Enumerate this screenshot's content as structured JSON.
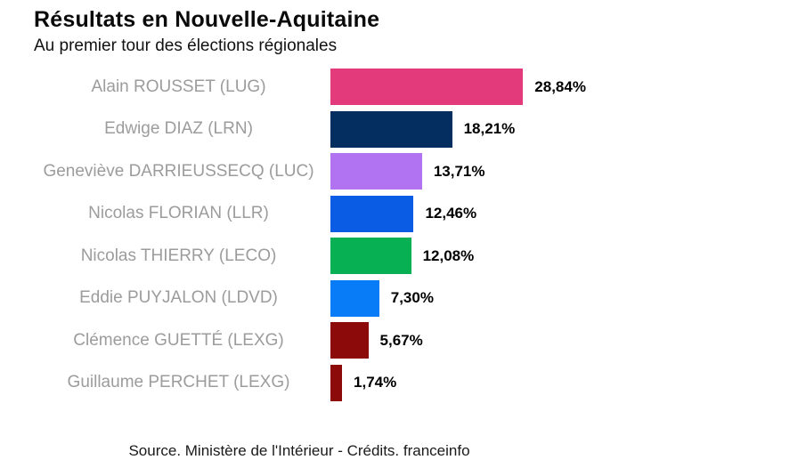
{
  "header": {
    "title": "Résultats en Nouvelle-Aquitaine",
    "subtitle": "Au premier tour des élections régionales"
  },
  "footer": {
    "source": "Source. Ministère de l'Intérieur - Crédits. franceinfo"
  },
  "chart_data": {
    "type": "bar",
    "orientation": "horizontal",
    "title": "Résultats en Nouvelle-Aquitaine",
    "subtitle": "Au premier tour des élections régionales",
    "source": "Source. Ministère de l'Intérieur - Crédits. franceinfo",
    "categories": [
      "Alain ROUSSET (LUG)",
      "Edwige DIAZ (LRN)",
      "Geneviève DARRIEUSSECQ (LUC)",
      "Nicolas FLORIAN (LLR)",
      "Nicolas THIERRY (LECO)",
      "Eddie PUYJALON (LDVD)",
      "Clémence GUETTÉ (LEXG)",
      "Guillaume PERCHET (LEXG)"
    ],
    "values": [
      28.84,
      18.21,
      13.71,
      12.46,
      12.08,
      7.3,
      5.67,
      1.74
    ],
    "value_labels": [
      "28,84%",
      "18,21%",
      "13,71%",
      "12,46%",
      "12,08%",
      "7,30%",
      "5,67%",
      "1,74%"
    ],
    "bar_colors": [
      "#e23a7a",
      "#032e5f",
      "#b273f2",
      "#0a5ce4",
      "#07b052",
      "#087cf7",
      "#8c0a0a",
      "#8c0a0a"
    ],
    "xlim": [
      0,
      30
    ],
    "xlabel": "",
    "ylabel": "",
    "grid": false,
    "legend": "none",
    "label_color": "#9c9c9c",
    "value_color": "#000000"
  }
}
